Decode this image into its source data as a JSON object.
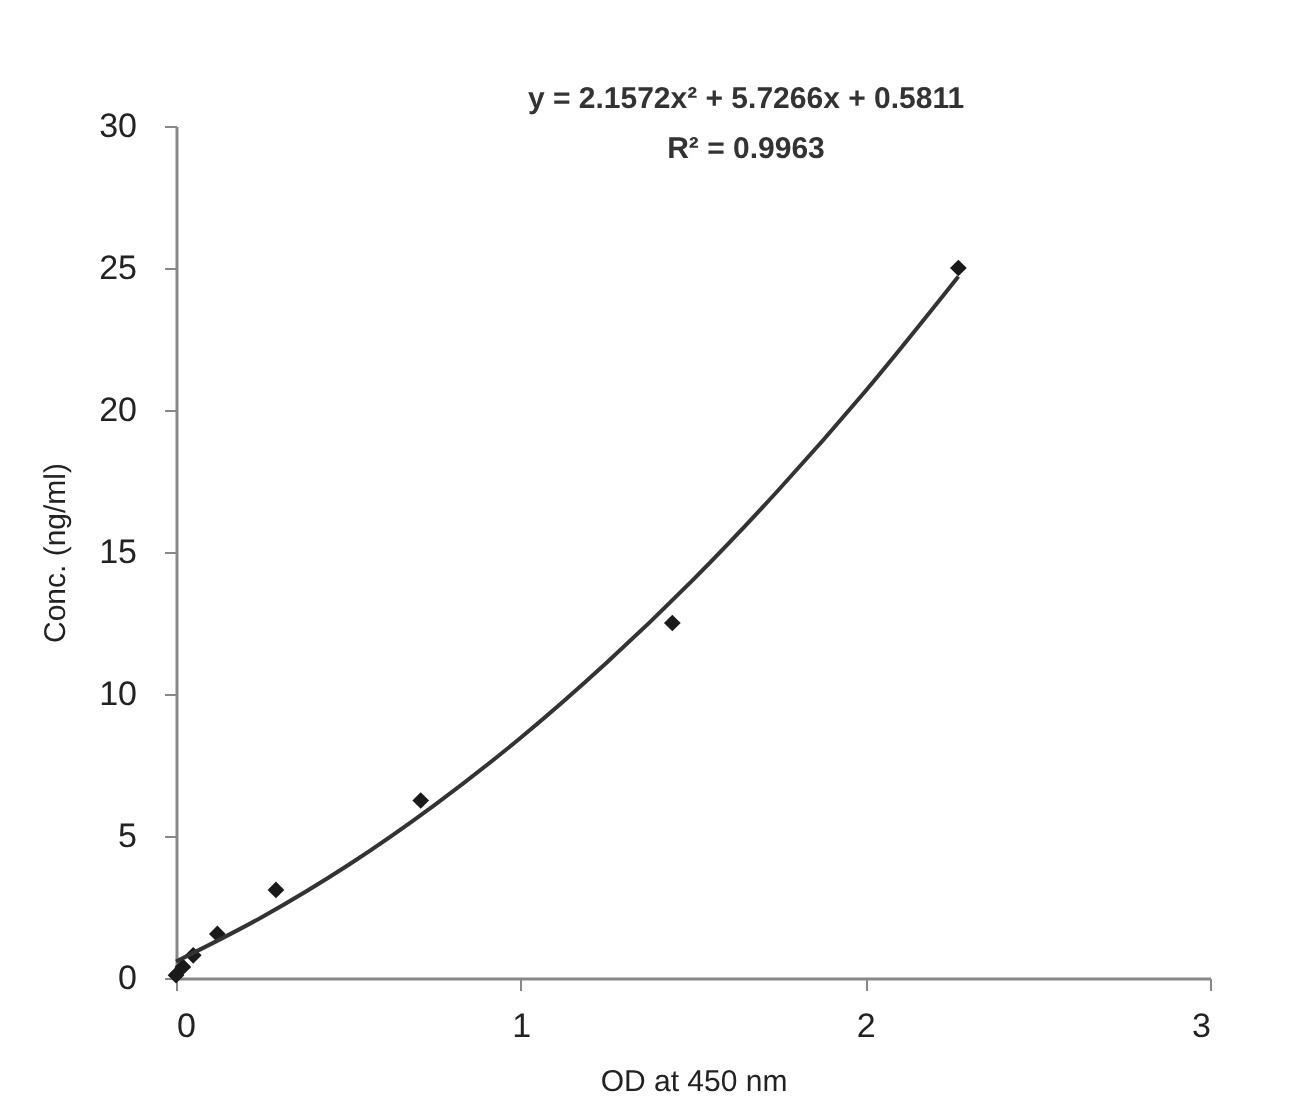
{
  "chart_data": {
    "type": "scatter",
    "xlabel": "OD at 450 nm",
    "ylabel": "Conc. (ng/ml)",
    "annotations": [
      "y = 2.1572x² + 5.7266x + 0.5811",
      "R² = 0.9963"
    ],
    "xlim": [
      0,
      3
    ],
    "xticks": [
      0,
      1,
      2,
      3
    ],
    "ylim": [
      0,
      30
    ],
    "yticks": [
      0,
      5,
      10,
      15,
      20,
      25,
      30
    ],
    "grid": false,
    "marker": "diamond",
    "series": [
      {
        "color": "#1a1a1a",
        "x": [
          0,
          0.02,
          0.05,
          0.12,
          0.29,
          0.71,
          1.44,
          2.27
        ],
        "values": [
          0.1,
          0.39,
          0.8,
          1.55,
          3.1,
          6.25,
          12.5,
          25
        ]
      },
      {
        "type": "line",
        "color": "#333333",
        "line_style": "solid",
        "marker": "none",
        "x": [
          0,
          0.25,
          0.5,
          0.75,
          1.0,
          1.25,
          1.5,
          1.75,
          2.0,
          2.27
        ],
        "values": [
          0.58,
          2.15,
          3.98,
          6.09,
          8.46,
          11.11,
          14.02,
          17.21,
          20.66,
          24.7
        ]
      }
    ]
  }
}
